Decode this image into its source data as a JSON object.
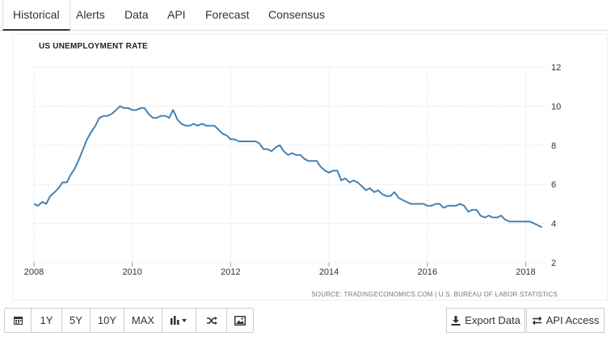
{
  "tabs": [
    "Historical",
    "Alerts",
    "Data",
    "API",
    "Forecast",
    "Consensus"
  ],
  "toolbar": {
    "icons": [
      "calendar-icon",
      "bar-chart-icon",
      "shuffle-icon",
      "image-icon"
    ],
    "ranges": [
      "1Y",
      "5Y",
      "10Y",
      "MAX"
    ],
    "export_label": "Export Data",
    "api_label": "API Access"
  },
  "chart_data": {
    "type": "line",
    "title": "US UNEMPLOYMENT RATE",
    "source": "SOURCE: TRADINGECONOMICS.COM | U.S. BUREAU OF LABOR STATISTICS",
    "xlabel": "",
    "ylabel": "",
    "xlim": [
      2008,
      2018.42
    ],
    "ylim": [
      2,
      12
    ],
    "x_ticks": [
      "2008",
      "2010",
      "2012",
      "2014",
      "2016",
      "2018"
    ],
    "y_ticks": [
      "2",
      "4",
      "6",
      "8",
      "10",
      "12"
    ],
    "grid": true,
    "line_color": "#4682b4",
    "series": [
      {
        "x": [
          2008.0,
          2008.08,
          2008.17,
          2008.25,
          2008.33,
          2008.42,
          2008.5,
          2008.58,
          2008.67,
          2008.75,
          2008.83,
          2008.92,
          2009.0,
          2009.08,
          2009.17,
          2009.25,
          2009.33,
          2009.42,
          2009.5,
          2009.58,
          2009.67,
          2009.75,
          2009.83,
          2009.92,
          2010.0,
          2010.08,
          2010.17,
          2010.25,
          2010.33,
          2010.42,
          2010.5,
          2010.58,
          2010.67,
          2010.75,
          2010.83,
          2010.92,
          2011.0,
          2011.08,
          2011.17,
          2011.25,
          2011.33,
          2011.42,
          2011.5,
          2011.58,
          2011.67,
          2011.75,
          2011.83,
          2011.92,
          2012.0,
          2012.08,
          2012.17,
          2012.25,
          2012.33,
          2012.42,
          2012.5,
          2012.58,
          2012.67,
          2012.75,
          2012.83,
          2012.92,
          2013.0,
          2013.08,
          2013.17,
          2013.25,
          2013.33,
          2013.42,
          2013.5,
          2013.58,
          2013.67,
          2013.75,
          2013.83,
          2013.92,
          2014.0,
          2014.08,
          2014.17,
          2014.25,
          2014.33,
          2014.42,
          2014.5,
          2014.58,
          2014.67,
          2014.75,
          2014.83,
          2014.92,
          2015.0,
          2015.08,
          2015.17,
          2015.25,
          2015.33,
          2015.42,
          2015.5,
          2015.58,
          2015.67,
          2015.75,
          2015.83,
          2015.92,
          2016.0,
          2016.08,
          2016.17,
          2016.25,
          2016.33,
          2016.42,
          2016.5,
          2016.58,
          2016.67,
          2016.75,
          2016.83,
          2016.92,
          2017.0,
          2017.08,
          2017.17,
          2017.25,
          2017.33,
          2017.42,
          2017.5,
          2017.58,
          2017.67,
          2017.75,
          2017.83,
          2017.92,
          2018.0,
          2018.08,
          2018.17,
          2018.25,
          2018.33
        ],
        "values": [
          5.0,
          4.9,
          5.1,
          5.0,
          5.4,
          5.6,
          5.8,
          6.1,
          6.1,
          6.5,
          6.8,
          7.3,
          7.8,
          8.3,
          8.7,
          9.0,
          9.4,
          9.5,
          9.5,
          9.6,
          9.8,
          10.0,
          9.9,
          9.9,
          9.8,
          9.8,
          9.9,
          9.9,
          9.6,
          9.4,
          9.4,
          9.5,
          9.5,
          9.4,
          9.8,
          9.3,
          9.1,
          9.0,
          9.0,
          9.1,
          9.0,
          9.1,
          9.0,
          9.0,
          9.0,
          8.8,
          8.6,
          8.5,
          8.3,
          8.3,
          8.2,
          8.2,
          8.2,
          8.2,
          8.2,
          8.1,
          7.8,
          7.8,
          7.7,
          7.9,
          8.0,
          7.7,
          7.5,
          7.6,
          7.5,
          7.5,
          7.3,
          7.2,
          7.2,
          7.2,
          6.9,
          6.7,
          6.6,
          6.7,
          6.7,
          6.2,
          6.3,
          6.1,
          6.2,
          6.1,
          5.9,
          5.7,
          5.8,
          5.6,
          5.7,
          5.5,
          5.4,
          5.4,
          5.6,
          5.3,
          5.2,
          5.1,
          5.0,
          5.0,
          5.0,
          5.0,
          4.9,
          4.9,
          5.0,
          5.0,
          4.8,
          4.9,
          4.9,
          4.9,
          5.0,
          4.9,
          4.6,
          4.7,
          4.7,
          4.4,
          4.3,
          4.4,
          4.3,
          4.3,
          4.4,
          4.2,
          4.1,
          4.1,
          4.1,
          4.1,
          4.1,
          4.1,
          4.0,
          3.9,
          3.8
        ]
      }
    ]
  }
}
